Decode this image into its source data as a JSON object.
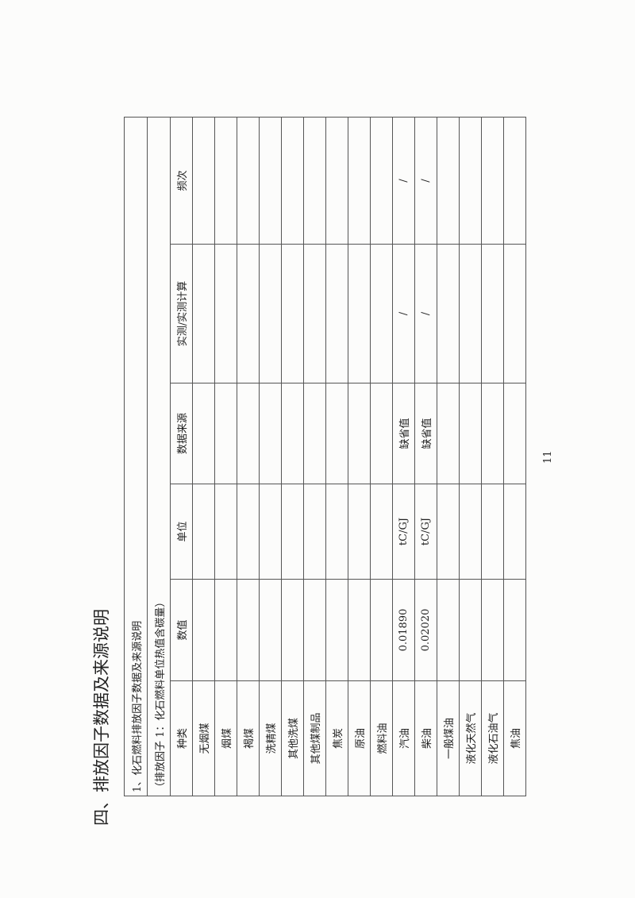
{
  "heading": "四、排放因子数据及来源说明",
  "page_number": "11",
  "table": {
    "title": "1、化石燃料排放因子数据及来源说明",
    "subtitle": "（排放因子 1：化石燃料单位热值含碳量）",
    "headers": [
      "种类",
      "数值",
      "单位",
      "数据来源",
      "实测/实测计算",
      "频次"
    ],
    "rows": [
      [
        "无烟煤",
        "",
        "",
        "",
        "",
        ""
      ],
      [
        "烟煤",
        "",
        "",
        "",
        "",
        ""
      ],
      [
        "褐煤",
        "",
        "",
        "",
        "",
        ""
      ],
      [
        "洗精煤",
        "",
        "",
        "",
        "",
        ""
      ],
      [
        "其他洗煤",
        "",
        "",
        "",
        "",
        ""
      ],
      [
        "其他煤制品",
        "",
        "",
        "",
        "",
        ""
      ],
      [
        "焦炭",
        "",
        "",
        "",
        "",
        ""
      ],
      [
        "原油",
        "",
        "",
        "",
        "",
        ""
      ],
      [
        "燃料油",
        "",
        "",
        "",
        "",
        ""
      ],
      [
        "汽油",
        "0.01890",
        "tC/GJ",
        "缺省值",
        "/",
        "/"
      ],
      [
        "柴油",
        "0.02020",
        "tC/GJ",
        "缺省值",
        "/",
        "/"
      ],
      [
        "一般煤油",
        "",
        "",
        "",
        "",
        ""
      ],
      [
        "液化天然气",
        "",
        "",
        "",
        "",
        ""
      ],
      [
        "液化石油气",
        "",
        "",
        "",
        "",
        ""
      ],
      [
        "焦油",
        "",
        "",
        "",
        "",
        ""
      ]
    ]
  }
}
